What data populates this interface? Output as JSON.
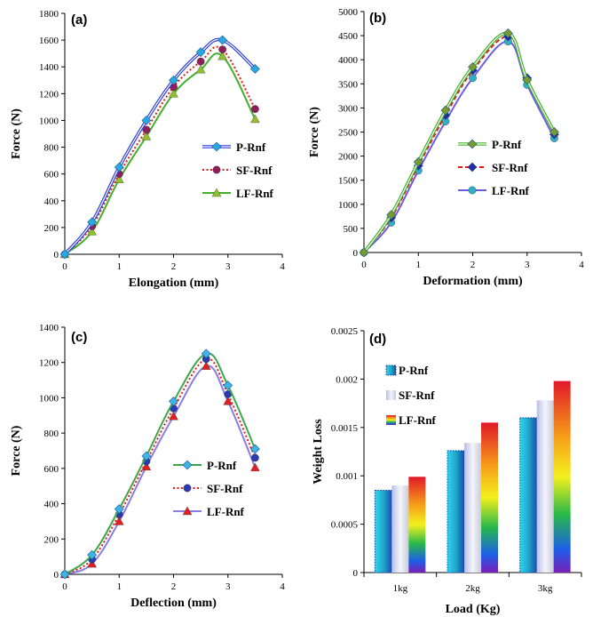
{
  "chart_data": [
    {
      "id": "a",
      "type": "line",
      "panel_label": "(a)",
      "xlabel": "Elongation (mm)",
      "ylabel": "Force (N)",
      "xlim": [
        0,
        4
      ],
      "ylim": [
        0,
        1800
      ],
      "xticks": [
        0,
        1,
        2,
        3,
        4
      ],
      "yticks": [
        0,
        200,
        400,
        600,
        800,
        1000,
        1200,
        1400,
        1600,
        1800
      ],
      "legend_position": "middle-right",
      "series": [
        {
          "name": "P-Rnf",
          "color": "#2b3fe0",
          "marker": "diamond",
          "marker_color": "#29a9e0",
          "dash": "solid",
          "double": true,
          "x": [
            0,
            0.5,
            1,
            1.5,
            2,
            2.5,
            2.9,
            3.5
          ],
          "y": [
            0,
            240,
            650,
            1000,
            1300,
            1510,
            1600,
            1385
          ]
        },
        {
          "name": "SF-Rnf",
          "color": "#e01b1b",
          "marker": "circle",
          "marker_color": "#8e1f5c",
          "dash": "dotted",
          "double": false,
          "x": [
            0,
            0.5,
            1,
            1.5,
            2,
            2.5,
            2.9,
            3.5
          ],
          "y": [
            0,
            210,
            600,
            930,
            1250,
            1440,
            1530,
            1085
          ]
        },
        {
          "name": "LF-Rnf",
          "color": "#44b02a",
          "marker": "triangle",
          "marker_color": "#8fbf2a",
          "dash": "solid",
          "double": false,
          "x": [
            0,
            0.5,
            1,
            1.5,
            2,
            2.5,
            2.9,
            3.5
          ],
          "y": [
            0,
            170,
            560,
            880,
            1200,
            1380,
            1480,
            1010
          ]
        }
      ]
    },
    {
      "id": "b",
      "type": "line",
      "panel_label": "(b)",
      "xlabel": "Deformation (mm)",
      "ylabel": "Force (N)",
      "xlim": [
        0,
        4
      ],
      "ylim": [
        0,
        5000
      ],
      "xticks": [
        0,
        1,
        2,
        3,
        4
      ],
      "yticks": [
        0,
        500,
        1000,
        1500,
        2000,
        2500,
        3000,
        3500,
        4000,
        4500,
        5000
      ],
      "legend_position": "middle-right",
      "series": [
        {
          "name": "P-Rnf",
          "color": "#44b02a",
          "marker": "diamond",
          "marker_color": "#7a9a2a",
          "dash": "solid",
          "double": true,
          "x": [
            0,
            0.5,
            1,
            1.5,
            2,
            2.65,
            3,
            3.5
          ],
          "y": [
            0,
            780,
            1880,
            2950,
            3850,
            4550,
            3580,
            2500
          ]
        },
        {
          "name": "SF-Rnf",
          "color": "#e01b1b",
          "marker": "diamond",
          "marker_color": "#2a2aa0",
          "dash": "dashed",
          "double": false,
          "x": [
            0,
            0.5,
            1,
            1.5,
            2,
            2.65,
            3,
            3.5
          ],
          "y": [
            0,
            720,
            1800,
            2850,
            3780,
            4480,
            3620,
            2450
          ]
        },
        {
          "name": "LF-Rnf",
          "color": "#6f5de0",
          "marker": "circle",
          "marker_color": "#2fb0c8",
          "dash": "solid",
          "double": false,
          "x": [
            0,
            0.5,
            1,
            1.5,
            2,
            2.65,
            3,
            3.5
          ],
          "y": [
            0,
            620,
            1700,
            2720,
            3620,
            4380,
            3480,
            2370
          ]
        }
      ]
    },
    {
      "id": "c",
      "type": "line",
      "panel_label": "(c)",
      "xlabel": "Deflection (mm)",
      "ylabel": "Force (N)",
      "xlim": [
        0,
        4
      ],
      "ylim": [
        0,
        1400
      ],
      "xticks": [
        0,
        1,
        2,
        3,
        4
      ],
      "yticks": [
        0,
        200,
        400,
        600,
        800,
        1000,
        1200,
        1400
      ],
      "legend_position": "middle-right",
      "series": [
        {
          "name": "P-Rnf",
          "color": "#3aa84a",
          "marker": "diamond",
          "marker_color": "#3fb3e6",
          "dash": "solid",
          "double": false,
          "x": [
            0,
            0.5,
            1,
            1.5,
            2,
            2.6,
            3,
            3.5
          ],
          "y": [
            0,
            110,
            370,
            670,
            980,
            1250,
            1070,
            710
          ]
        },
        {
          "name": "SF-Rnf",
          "color": "#e01b1b",
          "marker": "circle",
          "marker_color": "#2a3ab0",
          "dash": "dotted",
          "double": false,
          "x": [
            0,
            0.5,
            1,
            1.5,
            2,
            2.6,
            3,
            3.5
          ],
          "y": [
            0,
            85,
            340,
            640,
            940,
            1220,
            1020,
            660
          ]
        },
        {
          "name": "LF-Rnf",
          "color": "#8a7de8",
          "marker": "triangle",
          "marker_color": "#e02020",
          "dash": "solid",
          "double": false,
          "x": [
            0,
            0.5,
            1,
            1.5,
            2,
            2.6,
            3,
            3.5
          ],
          "y": [
            0,
            60,
            300,
            610,
            895,
            1180,
            980,
            605
          ]
        }
      ]
    },
    {
      "id": "d",
      "type": "bar",
      "panel_label": "(d)",
      "xlabel": "Load (Kg)",
      "ylabel": "Weight Loss",
      "categories": [
        "1kg",
        "2kg",
        "3kg"
      ],
      "ylim": [
        0,
        0.0025
      ],
      "yticks": [
        "0",
        "0.0005",
        "0.001",
        "0.0015",
        "0.002",
        "0.0025"
      ],
      "legend_position": "top-left",
      "series": [
        {
          "name": "P-Rnf",
          "style": "cyan-gradient",
          "values": [
            0.00085,
            0.00126,
            0.0016
          ]
        },
        {
          "name": "SF-Rnf",
          "style": "silver-gradient",
          "values": [
            0.0009,
            0.00134,
            0.00178
          ]
        },
        {
          "name": "LF-Rnf",
          "style": "rainbow-gradient",
          "values": [
            0.00099,
            0.00155,
            0.00198
          ]
        }
      ]
    }
  ]
}
